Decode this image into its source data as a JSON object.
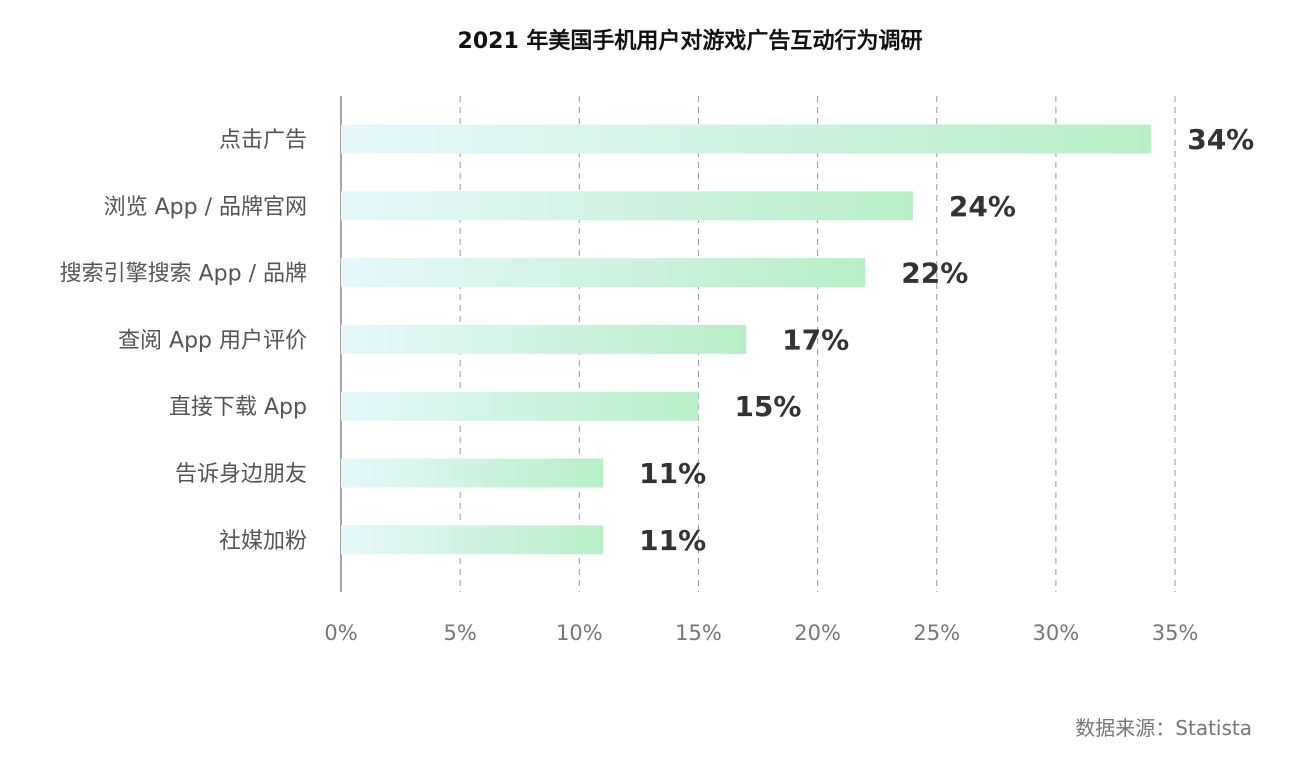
{
  "chart_data": {
    "type": "bar",
    "orientation": "horizontal",
    "title": "2021 年美国手机用户对游戏广告互动行为调研",
    "categories": [
      "点击广告",
      "浏览 App / 品牌官网",
      "搜索引擎搜索 App / 品牌",
      "查阅 App 用户评价",
      "直接下载 App",
      "告诉身边朋友",
      "社媒加粉"
    ],
    "values": [
      34,
      24,
      22,
      17,
      15,
      11,
      11
    ],
    "value_labels": [
      "34%",
      "24%",
      "22%",
      "17%",
      "15%",
      "11%",
      "11%"
    ],
    "xlim": [
      0,
      35
    ],
    "x_ticks": [
      0,
      5,
      10,
      15,
      20,
      25,
      30,
      35
    ],
    "x_tick_labels": [
      "0%",
      "5%",
      "10%",
      "15%",
      "20%",
      "25%",
      "30%",
      "35%"
    ],
    "grid": "vertical dashed",
    "bar_color_start": "#e6f7fb",
    "bar_color_end": "#b8efc8"
  },
  "footer": {
    "source": "数据来源：Statista"
  }
}
